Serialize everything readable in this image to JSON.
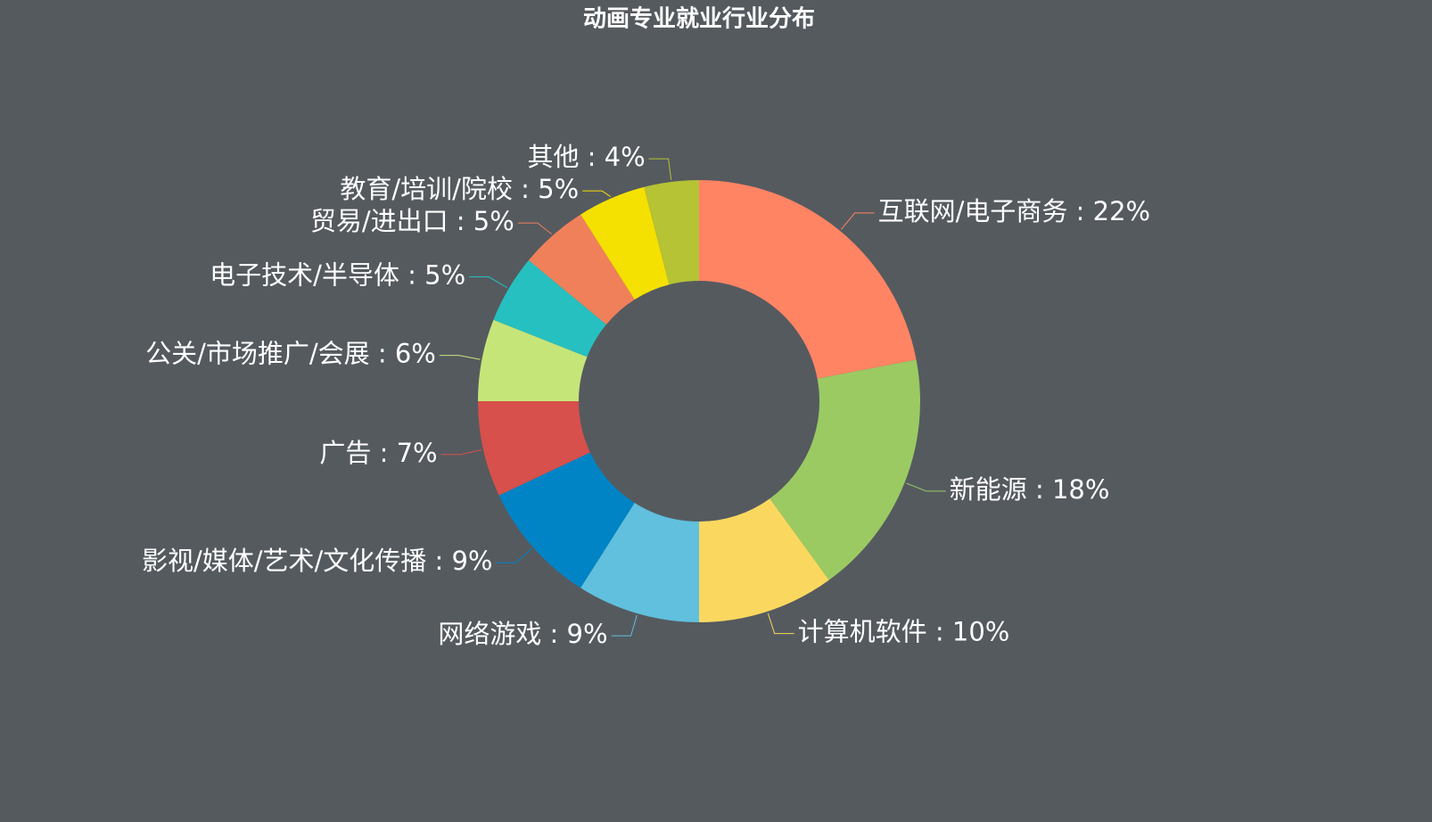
{
  "chart_data": {
    "type": "donut",
    "title": "动画专业就业行业分布",
    "series": [
      {
        "values": [
          22,
          18,
          10,
          9,
          9,
          7,
          6,
          5,
          5,
          5,
          4
        ],
        "value_labels": [
          "互联网/电子商务 : 22%",
          "新能源 : 18%",
          "计算机软件 : 10%",
          "网络游戏 : 9%",
          "影视/媒体/艺术/文化传播 : 9%",
          "广告 : 7%",
          "公关/市场推广/会展 : 6%",
          "电子技术/半导体 : 5%",
          "贸易/进出口 : 5%",
          "教育/培训/院校 : 5%",
          "其他 : 4%"
        ],
        "colors": [
          "#ff8463",
          "#9bca63",
          "#fad860",
          "#60c0dd",
          "#0084c6",
          "#d7504b",
          "#c6e579",
          "#26c0c0",
          "#f0805a",
          "#f4e001",
          "#b5c334"
        ]
      }
    ]
  }
}
